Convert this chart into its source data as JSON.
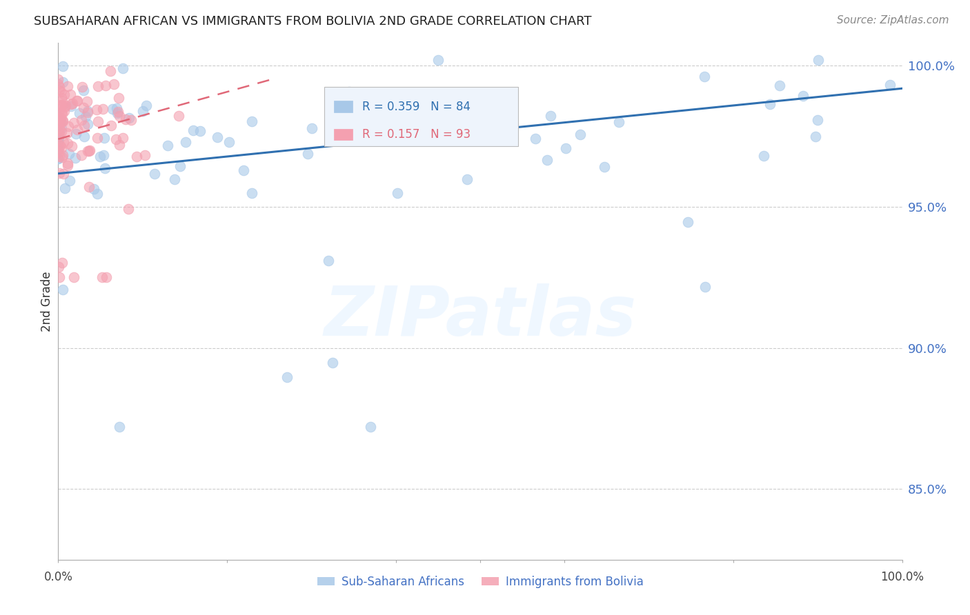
{
  "title": "SUBSAHARAN AFRICAN VS IMMIGRANTS FROM BOLIVIA 2ND GRADE CORRELATION CHART",
  "source": "Source: ZipAtlas.com",
  "ylabel": "2nd Grade",
  "ytick_vals": [
    0.85,
    0.9,
    0.95,
    1.0
  ],
  "ytick_labels": [
    "85.0%",
    "90.0%",
    "95.0%",
    "100.0%"
  ],
  "xrange": [
    0.0,
    1.0
  ],
  "yrange": [
    0.825,
    1.008
  ],
  "blue_R": 0.359,
  "blue_N": 84,
  "pink_R": 0.157,
  "pink_N": 93,
  "blue_color": "#a8c8e8",
  "pink_color": "#f4a0b0",
  "blue_line_color": "#3070b0",
  "pink_line_color": "#e06878",
  "grid_color": "#cccccc",
  "axis_color": "#aaaaaa",
  "right_tick_color": "#4472c4",
  "legend_label_blue": "Sub-Saharan Africans",
  "legend_label_pink": "Immigrants from Bolivia",
  "watermark": "ZIPatlas",
  "legend_R_blue": "R = 0.359",
  "legend_N_blue": "N = 84",
  "legend_R_pink": "R = 0.157",
  "legend_N_pink": "N = 93"
}
